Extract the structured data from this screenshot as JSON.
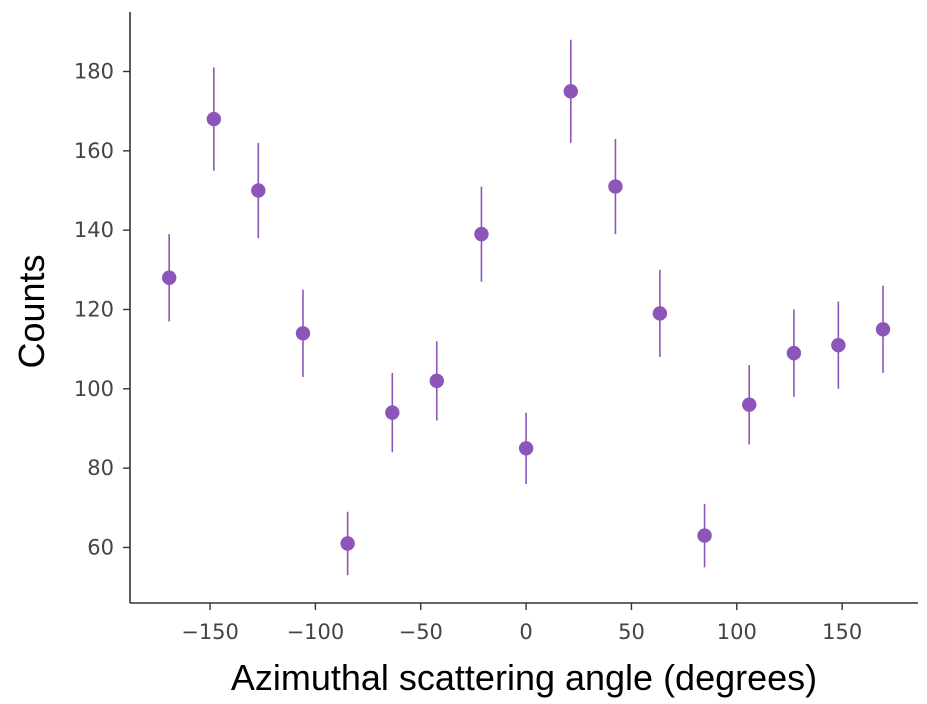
{
  "chart_data": {
    "type": "scatter",
    "xlabel": "Azimuthal scattering angle (degrees)",
    "ylabel": "Counts",
    "xlim": [
      -188,
      186
    ],
    "ylim": [
      46,
      195
    ],
    "xticks": [
      -150,
      -100,
      -50,
      0,
      50,
      100,
      150
    ],
    "xtick_labels": [
      "−150",
      "−100",
      "−50",
      "0",
      "50",
      "100",
      "150"
    ],
    "yticks": [
      60,
      80,
      100,
      120,
      140,
      160,
      180
    ],
    "ytick_labels": [
      "60",
      "80",
      "100",
      "120",
      "140",
      "160",
      "180"
    ],
    "grid": false,
    "error_bars": true,
    "series": [
      {
        "color": "#8e55b8",
        "points": [
          {
            "x": -169.4,
            "y": 128,
            "err_low": 117,
            "err_high": 139
          },
          {
            "x": -148.2,
            "y": 168,
            "err_low": 155,
            "err_high": 181
          },
          {
            "x": -127.1,
            "y": 150,
            "err_low": 138,
            "err_high": 162
          },
          {
            "x": -105.9,
            "y": 114,
            "err_low": 103,
            "err_high": 125
          },
          {
            "x": -84.7,
            "y": 61,
            "err_low": 53,
            "err_high": 69
          },
          {
            "x": -63.5,
            "y": 94,
            "err_low": 84,
            "err_high": 104
          },
          {
            "x": -42.4,
            "y": 102,
            "err_low": 92,
            "err_high": 112
          },
          {
            "x": -21.2,
            "y": 139,
            "err_low": 127,
            "err_high": 151
          },
          {
            "x": 0,
            "y": 85,
            "err_low": 76,
            "err_high": 94
          },
          {
            "x": 21.2,
            "y": 175,
            "err_low": 162,
            "err_high": 188
          },
          {
            "x": 42.4,
            "y": 151,
            "err_low": 139,
            "err_high": 163
          },
          {
            "x": 63.5,
            "y": 119,
            "err_low": 108,
            "err_high": 130
          },
          {
            "x": 84.7,
            "y": 63,
            "err_low": 55,
            "err_high": 71
          },
          {
            "x": 105.9,
            "y": 96,
            "err_low": 86,
            "err_high": 106
          },
          {
            "x": 127.1,
            "y": 109,
            "err_low": 98,
            "err_high": 120
          },
          {
            "x": 148.2,
            "y": 111,
            "err_low": 100,
            "err_high": 122
          },
          {
            "x": 169.4,
            "y": 115,
            "err_low": 104,
            "err_high": 126
          }
        ]
      }
    ]
  }
}
